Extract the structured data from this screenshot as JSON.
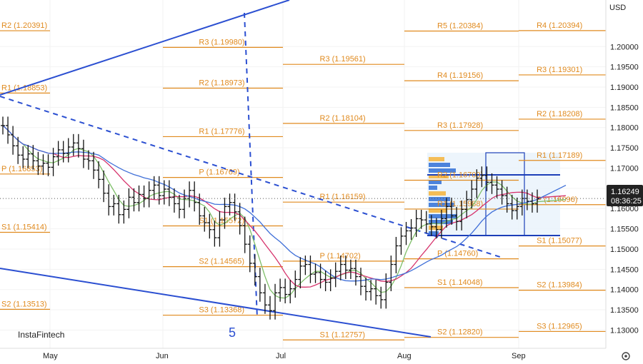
{
  "chart_data": {
    "type": "bar",
    "currency": "USD",
    "price_axis_ticks": [
      1.2,
      1.195,
      1.19,
      1.185,
      1.18,
      1.175,
      1.17,
      1.165,
      1.16,
      1.155,
      1.15,
      1.145,
      1.14,
      1.135,
      1.13
    ],
    "months": [
      "May",
      "Jun",
      "Jul",
      "Aug",
      "Sep"
    ],
    "current_price": "1.16249",
    "countdown": "08:36:25",
    "watermark": "InstaFintech",
    "wave_label": "5",
    "ylim": [
      1.1255,
      1.2115
    ],
    "colors": {
      "pivot": "#e08a1e",
      "trendline": "#2b4fd1",
      "ma_fast": "#7fbf6a",
      "ma_mid": "#d6336c",
      "ma_slow": "#3f6fd8",
      "bars": "#111111",
      "price_badge": "#222222"
    },
    "pivot_levels": [
      {
        "label": "R2 (1.20391)",
        "value": 1.20391,
        "period": 0
      },
      {
        "label": "R1 (1.18853)",
        "value": 1.18853,
        "period": 0
      },
      {
        "label": "P (1.16853)",
        "value": 1.16853,
        "period": 0
      },
      {
        "label": "S1 (1.15414)",
        "value": 1.15414,
        "period": 0
      },
      {
        "label": "S2 (1.13513)",
        "value": 1.13513,
        "period": 0
      },
      {
        "label": "R3 (1.19980)",
        "value": 1.1998,
        "period": 1
      },
      {
        "label": "R2 (1.18973)",
        "value": 1.18973,
        "period": 1
      },
      {
        "label": "R1 (1.17776)",
        "value": 1.17776,
        "period": 1
      },
      {
        "label": "P (1.16769)",
        "value": 1.16769,
        "period": 1
      },
      {
        "label": "S1 (1.15572)",
        "value": 1.15572,
        "period": 1
      },
      {
        "label": "S2 (1.14565)",
        "value": 1.14565,
        "period": 1
      },
      {
        "label": "S3 (1.13368)",
        "value": 1.13368,
        "period": 1
      },
      {
        "label": "R3 (1.19561)",
        "value": 1.19561,
        "period": 2
      },
      {
        "label": "R2 (1.18104)",
        "value": 1.18104,
        "period": 2
      },
      {
        "label": "R1 (1.16159)",
        "value": 1.16159,
        "period": 2
      },
      {
        "label": "P (1.14702)",
        "value": 1.14702,
        "period": 2
      },
      {
        "label": "S1 (1.12757)",
        "value": 1.12757,
        "period": 2
      },
      {
        "label": "R5 (1.20384)",
        "value": 1.20384,
        "period": 3
      },
      {
        "label": "R4 (1.19156)",
        "value": 1.19156,
        "period": 3
      },
      {
        "label": "R3 (1.17928)",
        "value": 1.17928,
        "period": 3
      },
      {
        "label": "R2 (1.16700)",
        "value": 1.167,
        "period": 3
      },
      {
        "label": "R1 (1.15988)",
        "value": 1.15988,
        "period": 3
      },
      {
        "label": "P (1.14760)",
        "value": 1.1476,
        "period": 3
      },
      {
        "label": "S1 (1.14048)",
        "value": 1.14048,
        "period": 3
      },
      {
        "label": "S2 (1.12820)",
        "value": 1.1282,
        "period": 3
      },
      {
        "label": "R4 (1.20394)",
        "value": 1.20394,
        "period": 4
      },
      {
        "label": "R3 (1.19301)",
        "value": 1.19301,
        "period": 4
      },
      {
        "label": "R2 (1.18208)",
        "value": 1.18208,
        "period": 4
      },
      {
        "label": "R1 (1.17189)",
        "value": 1.17189,
        "period": 4
      },
      {
        "label": "P (1.16096)",
        "value": 1.16096,
        "period": 4
      },
      {
        "label": "S1 (1.15077)",
        "value": 1.15077,
        "period": 4
      },
      {
        "label": "S2 (1.13984)",
        "value": 1.13984,
        "period": 4
      },
      {
        "label": "S3 (1.12965)",
        "value": 1.12965,
        "period": 4
      }
    ],
    "price_series": [
      1.1805,
      1.1782,
      1.1755,
      1.1732,
      1.1722,
      1.1735,
      1.1718,
      1.1705,
      1.1712,
      1.1702,
      1.1728,
      1.1745,
      1.1736,
      1.1752,
      1.1762,
      1.1748,
      1.1722,
      1.1718,
      1.1695,
      1.1672,
      1.1638,
      1.1605,
      1.1612,
      1.1585,
      1.1598,
      1.1628,
      1.1615,
      1.1635,
      1.1625,
      1.1645,
      1.1658,
      1.1632,
      1.1648,
      1.1628,
      1.1612,
      1.1598,
      1.1625,
      1.1645,
      1.1615,
      1.1582,
      1.1565,
      1.1548,
      1.1528,
      1.1572,
      1.1605,
      1.1615,
      1.1592,
      1.1558,
      1.1512,
      1.1465,
      1.1432,
      1.1392,
      1.1362,
      1.1348,
      1.1392,
      1.1405,
      1.1388,
      1.1402,
      1.1425,
      1.1458,
      1.1462,
      1.1438,
      1.1442,
      1.1425,
      1.1418,
      1.1428,
      1.1445,
      1.1462,
      1.1448,
      1.1452,
      1.1432,
      1.1408,
      1.1395,
      1.1402,
      1.1385,
      1.1375,
      1.1418,
      1.1462,
      1.1508,
      1.1532,
      1.1545,
      1.1552,
      1.1575,
      1.1572,
      1.1562,
      1.1555,
      1.1548,
      1.1575,
      1.1605,
      1.1582,
      1.1568,
      1.1598,
      1.1622,
      1.1648,
      1.1675,
      1.1682,
      1.1665,
      1.1658,
      1.1648,
      1.1632,
      1.1612,
      1.1595,
      1.1605,
      1.1625,
      1.1618,
      1.1612,
      1.1625
    ]
  }
}
